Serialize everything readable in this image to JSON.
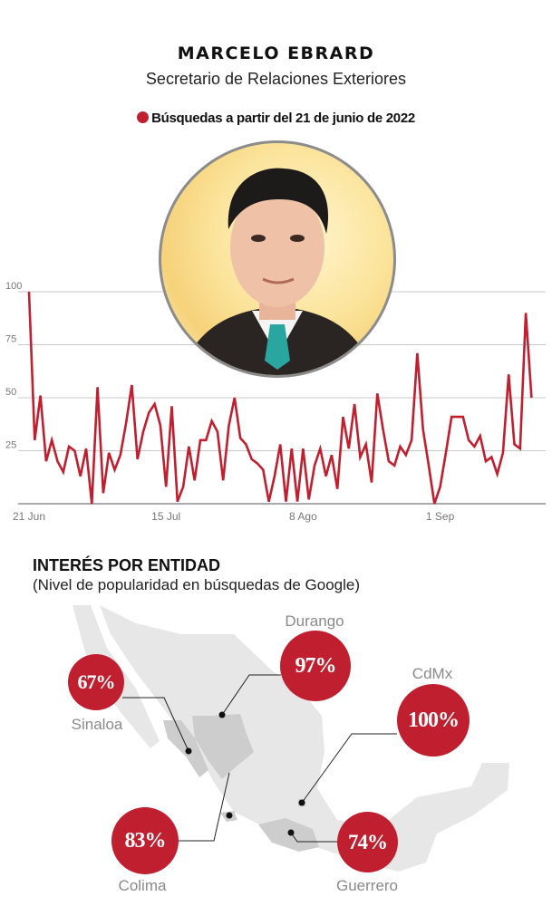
{
  "header": {
    "title": "MARCELO EBRARD",
    "subtitle": "Secretario de Relaciones Exteriores",
    "legend_label": "Búsquedas a partir del 21 de junio de 2022"
  },
  "colors": {
    "accent": "#c01f2f",
    "grid": "#c8c8c8",
    "map": "#e7e7e7",
    "map_highlight": "#cdcdcd",
    "label": "#8a8a8a"
  },
  "portrait": {
    "icon": "portrait-illustration"
  },
  "chart_data": {
    "type": "line",
    "title": "",
    "xlabel": "",
    "ylabel": "",
    "ylim": [
      0,
      100
    ],
    "yticks": [
      "100",
      "75",
      "50",
      "25"
    ],
    "ytick_values": [
      100,
      75,
      50,
      25
    ],
    "xticks": [
      {
        "label": "21 Jun",
        "date": "2022-06-21"
      },
      {
        "label": "15 Jul",
        "date": "2022-07-15"
      },
      {
        "label": "8 Ago",
        "date": "2022-08-08"
      },
      {
        "label": "1 Sep",
        "date": "2022-09-01"
      }
    ],
    "grid": true,
    "series": [
      {
        "color": "#c01f2f",
        "x": [
          "2022-06-21",
          "2022-06-22",
          "2022-06-23",
          "2022-06-24",
          "2022-06-25",
          "2022-06-26",
          "2022-06-27",
          "2022-06-28",
          "2022-06-29",
          "2022-06-30",
          "2022-07-01",
          "2022-07-02",
          "2022-07-03",
          "2022-07-04",
          "2022-07-05",
          "2022-07-06",
          "2022-07-07",
          "2022-07-08",
          "2022-07-09",
          "2022-07-10",
          "2022-07-11",
          "2022-07-12",
          "2022-07-13",
          "2022-07-14",
          "2022-07-15",
          "2022-07-16",
          "2022-07-17",
          "2022-07-18",
          "2022-07-19",
          "2022-07-20",
          "2022-07-21",
          "2022-07-22",
          "2022-07-23",
          "2022-07-24",
          "2022-07-25",
          "2022-07-26",
          "2022-07-27",
          "2022-07-28",
          "2022-07-29",
          "2022-07-30",
          "2022-07-31",
          "2022-08-01",
          "2022-08-02",
          "2022-08-03",
          "2022-08-04",
          "2022-08-05",
          "2022-08-06",
          "2022-08-07",
          "2022-08-08",
          "2022-08-09",
          "2022-08-10",
          "2022-08-11",
          "2022-08-12",
          "2022-08-13",
          "2022-08-14",
          "2022-08-15",
          "2022-08-16",
          "2022-08-17",
          "2022-08-18",
          "2022-08-19",
          "2022-08-20",
          "2022-08-21",
          "2022-08-22",
          "2022-08-23",
          "2022-08-24",
          "2022-08-25",
          "2022-08-26",
          "2022-08-27",
          "2022-08-28",
          "2022-08-29",
          "2022-08-30",
          "2022-08-31",
          "2022-09-01",
          "2022-09-02",
          "2022-09-03",
          "2022-09-04",
          "2022-09-05",
          "2022-09-06",
          "2022-09-07",
          "2022-09-08",
          "2022-09-09",
          "2022-09-10",
          "2022-09-11",
          "2022-09-12",
          "2022-09-13",
          "2022-09-14",
          "2022-09-15",
          "2022-09-16",
          "2022-09-17"
        ],
        "values": [
          100,
          30,
          51,
          20,
          30,
          20,
          15,
          27,
          25,
          13,
          26,
          0,
          55,
          5,
          24,
          16,
          23,
          38,
          56,
          21,
          34,
          43,
          47,
          37,
          8,
          46,
          1,
          8,
          27,
          11,
          30,
          30,
          39,
          34,
          11,
          37,
          50,
          31,
          28,
          21,
          19,
          16,
          1,
          13,
          28,
          1,
          26,
          1,
          26,
          2,
          18,
          26,
          13,
          23,
          7,
          41,
          26,
          47,
          22,
          28,
          10,
          52,
          35,
          20,
          18,
          27,
          23,
          30,
          71,
          35,
          18,
          0,
          8,
          24,
          41,
          41,
          41,
          30,
          27,
          32,
          20,
          22,
          14,
          24,
          61,
          28,
          26,
          90,
          50
        ]
      }
    ]
  },
  "map_section": {
    "title": "INTERÉS POR ENTIDAD",
    "subtitle": "(Nivel de popularidad en búsquedas de Google)",
    "regions": [
      {
        "name": "Sinaloa",
        "value": "67%"
      },
      {
        "name": "Durango",
        "value": "97%"
      },
      {
        "name": "CdMx",
        "value": "100%"
      },
      {
        "name": "Colima",
        "value": "83%"
      },
      {
        "name": "Guerrero",
        "value": "74%"
      }
    ]
  }
}
